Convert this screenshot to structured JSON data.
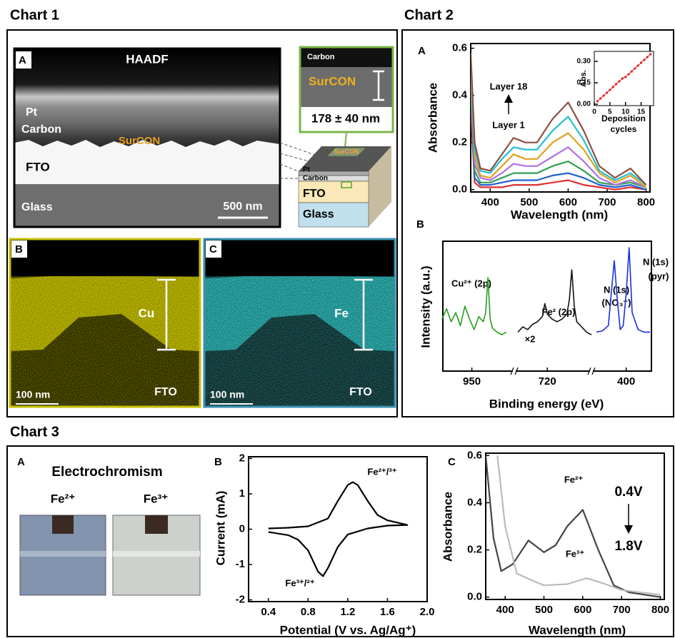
{
  "headings": [
    "Chart 1",
    "Chart 2",
    "Chart 3"
  ],
  "chart1": {
    "panel_a": {
      "letter": "A",
      "labels": [
        "HAADF",
        "Pt",
        "Carbon",
        "SurCON",
        "FTO",
        "Glass",
        "500 nm"
      ],
      "inset": [
        "Carbon",
        "SurCON",
        "178 ± 40 nm"
      ],
      "schematic": [
        "SurCON",
        "Pt",
        "Carbon",
        "FTO",
        "Glass"
      ]
    },
    "panel_b": {
      "letter": "B",
      "element": "Cu",
      "scale": "100 nm",
      "substrate": "FTO"
    },
    "panel_c": {
      "letter": "C",
      "element": "Fe",
      "scale": "100 nm",
      "substrate": "FTO"
    }
  },
  "chart3_photos": {
    "letter": "A",
    "title": "Electrochromism",
    "labels": [
      "Fe²⁺",
      "Fe³⁺"
    ]
  },
  "chart_data": [
    {
      "type": "line",
      "panel": "A",
      "xlabel": "Wavelength (nm)",
      "ylabel": "Absorbance",
      "xlim": [
        350,
        810
      ],
      "ylim": [
        -0.01,
        0.62
      ],
      "xticks": [
        400,
        500,
        600,
        700,
        800
      ],
      "yticks": [
        {
          "value": 0,
          "label": "0.0"
        },
        {
          "value": 0.2,
          "label": "0.2"
        },
        {
          "value": 0.4,
          "label": "0.4"
        },
        {
          "value": 0.6,
          "label": "0.6"
        }
      ],
      "x": [
        350,
        360,
        375,
        400,
        430,
        460,
        490,
        520,
        560,
        600,
        640,
        680,
        720,
        760,
        800
      ],
      "series": [
        {
          "color": "#e03030",
          "values": [
            0.35,
            0.03,
            0.01,
            0.01,
            0.01,
            0.02,
            0.02,
            0.02,
            0.03,
            0.04,
            0.02,
            0.01,
            0.0,
            0.01,
            0.0
          ]
        },
        {
          "color": "#2060d0",
          "values": [
            0.4,
            0.05,
            0.02,
            0.02,
            0.03,
            0.04,
            0.04,
            0.04,
            0.06,
            0.07,
            0.05,
            0.02,
            0.01,
            0.02,
            0.0
          ]
        },
        {
          "color": "#30a050",
          "values": [
            0.44,
            0.08,
            0.03,
            0.03,
            0.05,
            0.07,
            0.07,
            0.07,
            0.1,
            0.12,
            0.08,
            0.03,
            0.02,
            0.03,
            0.01
          ]
        },
        {
          "color": "#b070e0",
          "values": [
            0.48,
            0.11,
            0.05,
            0.04,
            0.07,
            0.11,
            0.1,
            0.1,
            0.14,
            0.18,
            0.12,
            0.05,
            0.02,
            0.04,
            0.01
          ]
        },
        {
          "color": "#e0a020",
          "values": [
            0.52,
            0.14,
            0.06,
            0.05,
            0.1,
            0.15,
            0.13,
            0.13,
            0.2,
            0.24,
            0.17,
            0.07,
            0.03,
            0.06,
            0.01
          ]
        },
        {
          "color": "#20c0d0",
          "values": [
            0.55,
            0.17,
            0.08,
            0.07,
            0.13,
            0.18,
            0.17,
            0.17,
            0.25,
            0.31,
            0.21,
            0.08,
            0.04,
            0.07,
            0.02
          ]
        },
        {
          "color": "#8a5040",
          "values": [
            0.58,
            0.2,
            0.09,
            0.08,
            0.15,
            0.22,
            0.2,
            0.2,
            0.3,
            0.37,
            0.25,
            0.1,
            0.05,
            0.09,
            0.02
          ]
        }
      ],
      "annotations": [
        "Layer 18",
        "Layer 1"
      ]
    },
    {
      "type": "scatter",
      "xlabel": [
        "Deposition",
        "cycles"
      ],
      "ylabel": "Abs.",
      "xlim": [
        0,
        19
      ],
      "ylim": [
        -0.01,
        0.37
      ],
      "xticks": [
        0,
        5,
        10,
        15
      ],
      "yticks": [
        {
          "value": 0,
          "label": "0.00"
        },
        {
          "value": 0.15,
          "label": "0.15"
        },
        {
          "value": 0.3,
          "label": "0.30"
        }
      ],
      "color": "#e02020",
      "x": [
        1,
        2,
        3,
        4,
        5,
        6,
        7,
        8,
        9,
        10,
        11,
        12,
        13,
        14,
        15,
        16,
        17,
        18
      ],
      "values": [
        0.02,
        0.04,
        0.06,
        0.08,
        0.1,
        0.12,
        0.14,
        0.16,
        0.18,
        0.19,
        0.21,
        0.23,
        0.25,
        0.27,
        0.29,
        0.31,
        0.33,
        0.35
      ]
    },
    {
      "type": "broken-line",
      "panel": "B",
      "xlabel": "Binding energy (eV)",
      "ylabel": "Intensity (a.u.)",
      "ylim": [
        0,
        100
      ],
      "segments": [
        {
          "xlim": [
            962,
            934
          ],
          "xticks": [
            950
          ],
          "color": "#2a9a20",
          "x": [
            963,
            961,
            959,
            957,
            955,
            953,
            951,
            949,
            947,
            945,
            944,
            943,
            942,
            941,
            939,
            937,
            935
          ],
          "values": [
            40,
            48,
            38,
            45,
            35,
            50,
            40,
            32,
            42,
            38,
            45,
            72,
            40,
            33,
            30,
            28,
            30
          ]
        },
        {
          "xlim": [
            732,
            702
          ],
          "xticks": [
            720
          ],
          "color": "#111111",
          "x": [
            732,
            730,
            728,
            726,
            724,
            722,
            721,
            720,
            718,
            716,
            714,
            712,
            711,
            710,
            709,
            708,
            706,
            704,
            702
          ],
          "values": [
            30,
            34,
            32,
            36,
            38,
            42,
            52,
            44,
            40,
            38,
            40,
            44,
            55,
            78,
            50,
            38,
            34,
            30,
            28
          ]
        },
        {
          "xlim": [
            410,
            392
          ],
          "xticks": [
            400
          ],
          "color": "#1a2ee0",
          "x": [
            410,
            408,
            406,
            405,
            404,
            403,
            402,
            401,
            400,
            399,
            398,
            396,
            394,
            392
          ],
          "values": [
            30,
            31,
            35,
            60,
            85,
            55,
            32,
            35,
            60,
            95,
            45,
            32,
            30,
            30
          ]
        }
      ],
      "annotations": [
        "Cu²⁺ (2p)",
        "Fe² (2p)",
        "×2",
        "N (1s)",
        "(NO₃⁻)",
        "N (1s)",
        "(pyr)"
      ]
    },
    {
      "type": "line",
      "panel": "B",
      "xlabel": "Potential (V vs. Ag/Ag⁺)",
      "ylabel": "Current (mA)",
      "xlim": [
        0.2,
        2.0
      ],
      "ylim": [
        -2.05,
        2.05
      ],
      "xticks": [
        0.4,
        0.8,
        1.2,
        1.6,
        {
          "value": 2,
          "label": "2.0"
        }
      ],
      "yticks": [
        -2,
        -1,
        0,
        1,
        2
      ],
      "series": [
        {
          "color": "#000000",
          "x": [
            0.4,
            0.6,
            0.8,
            1.0,
            1.1,
            1.2,
            1.25,
            1.3,
            1.4,
            1.5,
            1.6,
            1.8,
            1.6,
            1.4,
            1.2,
            1.1,
            1.0,
            0.95,
            0.9,
            0.8,
            0.7,
            0.6,
            0.4
          ],
          "values": [
            0.02,
            0.04,
            0.08,
            0.3,
            0.8,
            1.25,
            1.33,
            1.25,
            0.8,
            0.4,
            0.25,
            0.12,
            0.1,
            0.02,
            -0.15,
            -0.5,
            -1.1,
            -1.33,
            -1.2,
            -0.6,
            -0.3,
            -0.17,
            -0.08
          ]
        }
      ],
      "annotations": [
        "Fe²⁺/³⁺",
        "Fe³⁺/²⁺"
      ]
    },
    {
      "type": "line",
      "panel": "C",
      "xlabel": "Wavelength (nm)",
      "ylabel": "Absorbance",
      "xlim": [
        350,
        810
      ],
      "ylim": [
        -0.01,
        0.61
      ],
      "xticks": [
        400,
        500,
        600,
        700,
        800
      ],
      "yticks": [
        {
          "value": 0,
          "label": "0.0"
        },
        {
          "value": 0.2,
          "label": "0.2"
        },
        {
          "value": 0.4,
          "label": "0.4"
        },
        {
          "value": 0.6,
          "label": "0.6"
        }
      ],
      "series": [
        {
          "color": "#444444",
          "x": [
            350,
            370,
            390,
            420,
            460,
            500,
            530,
            560,
            600,
            640,
            680,
            720,
            760,
            800
          ],
          "values": [
            0.6,
            0.25,
            0.11,
            0.14,
            0.24,
            0.19,
            0.22,
            0.3,
            0.37,
            0.2,
            0.05,
            0.02,
            0.01,
            0.0
          ]
        },
        {
          "color": "#bbbbbb",
          "x": [
            380,
            400,
            430,
            470,
            500,
            560,
            610,
            650,
            700,
            800
          ],
          "values": [
            0.6,
            0.3,
            0.1,
            0.07,
            0.05,
            0.055,
            0.08,
            0.06,
            0.03,
            0.01
          ]
        }
      ],
      "annotations": [
        "Fe²⁺",
        "Fe³⁺",
        "0.4V",
        "1.8V"
      ]
    }
  ]
}
